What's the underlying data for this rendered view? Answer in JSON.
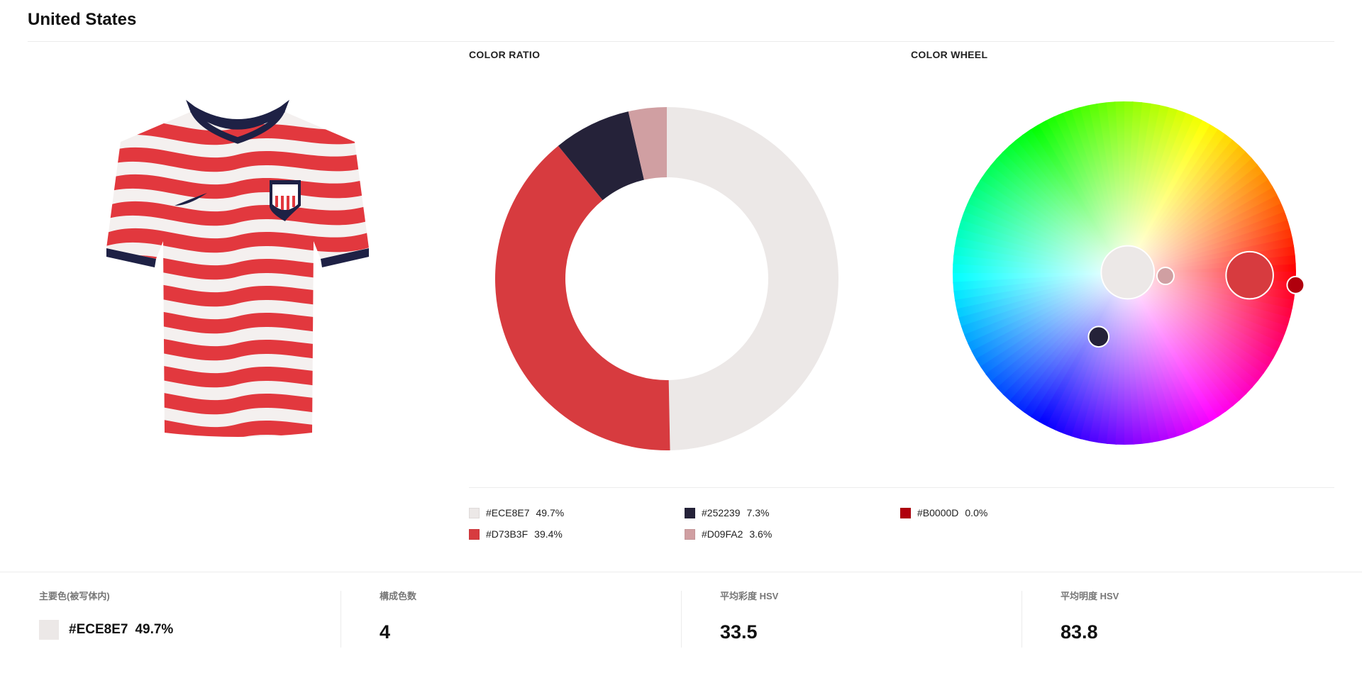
{
  "page": {
    "title": "United States"
  },
  "sections": {
    "color_ratio_label": "COLOR RATIO",
    "color_wheel_label": "COLOR WHEEL"
  },
  "legend": [
    {
      "hex": "#ECE8E7",
      "pct": "49.7%",
      "color": "#ECE8E7"
    },
    {
      "hex": "#D73B3F",
      "pct": "39.4%",
      "color": "#D73B3F"
    },
    {
      "hex": "#252239",
      "pct": "7.3%",
      "color": "#252239"
    },
    {
      "hex": "#D09FA2",
      "pct": "3.6%",
      "color": "#D09FA2"
    },
    {
      "hex": "#B0000D",
      "pct": "0.0%",
      "color": "#B0000D"
    }
  ],
  "stats": {
    "main_color": {
      "label": "主要色(被写体内)",
      "hex": "#ECE8E7",
      "pct": "49.7%",
      "color": "#ECE8E7"
    },
    "component_count": {
      "label": "構成色数",
      "value": "4"
    },
    "avg_saturation": {
      "label": "平均彩度 HSV",
      "value": "33.5"
    },
    "avg_brightness": {
      "label": "平均明度 HSV",
      "value": "83.8"
    }
  },
  "jersey": {
    "description_icon": "jersey-image",
    "colors": {
      "white": "#F4F0EF",
      "red": "#E2383E",
      "navy": "#1E2145"
    }
  },
  "chart_data": [
    {
      "type": "pie",
      "title": "COLOR RATIO",
      "categories": [
        "#ECE8E7",
        "#D73B3F",
        "#252239",
        "#D09FA2"
      ],
      "values": [
        49.7,
        39.4,
        7.3,
        3.6
      ],
      "colors": [
        "#ECE8E7",
        "#D73B3F",
        "#252239",
        "#D09FA2"
      ],
      "donut": true
    },
    {
      "type": "scatter",
      "title": "COLOR WHEEL",
      "points": [
        {
          "hex": "#ECE8E7",
          "hue": 12,
          "saturation": 0.02,
          "share": 49.7
        },
        {
          "hex": "#D73B3F",
          "hue": 359,
          "saturation": 0.73,
          "share": 39.4
        },
        {
          "hex": "#252239",
          "hue": 248,
          "saturation": 0.4,
          "share": 7.3
        },
        {
          "hex": "#D09FA2",
          "hue": 356,
          "saturation": 0.24,
          "share": 3.6
        },
        {
          "hex": "#B0000D",
          "hue": 356,
          "saturation": 1.0,
          "share": 0.0
        }
      ]
    }
  ]
}
